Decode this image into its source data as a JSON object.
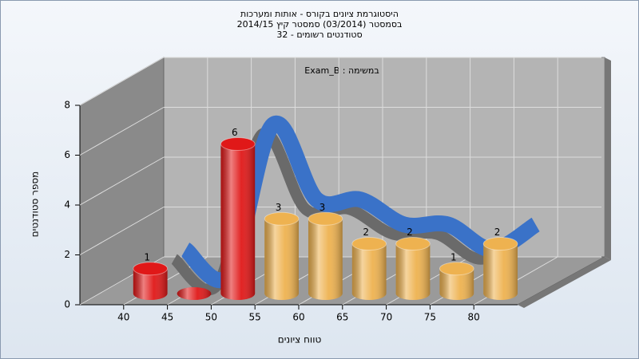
{
  "chart_data": {
    "type": "histogram",
    "title": "היסטוגרמת ציונים בקורס - אותות ומערכות",
    "subtitle": [
      "בסמסטר  (03/2014)  סמסטר קיץ 2014/15",
      "סטודנטים רשומים - 32"
    ],
    "annotation": "במשימה : Exam_B",
    "xlabel": "טווח ציונים",
    "ylabel": "מספר סטודנטים",
    "bins": [
      40,
      45,
      50,
      55,
      60,
      65,
      70,
      75,
      80,
      85
    ],
    "counts": [
      1,
      0,
      6,
      3,
      3,
      2,
      2,
      1,
      2
    ],
    "colors": [
      "#e01818",
      "#e01818",
      "#e01818",
      "#eeb250",
      "#eeb250",
      "#eeb250",
      "#eeb250",
      "#eeb250",
      "#eeb250"
    ],
    "trend_color": "#3a72c8",
    "xlim": [
      35,
      85
    ],
    "xticks": [
      40,
      45,
      50,
      55,
      60,
      65,
      70,
      75,
      80
    ],
    "ylim": [
      0,
      8
    ],
    "yticks": [
      0,
      2,
      4,
      6,
      8
    ],
    "grid": true
  }
}
